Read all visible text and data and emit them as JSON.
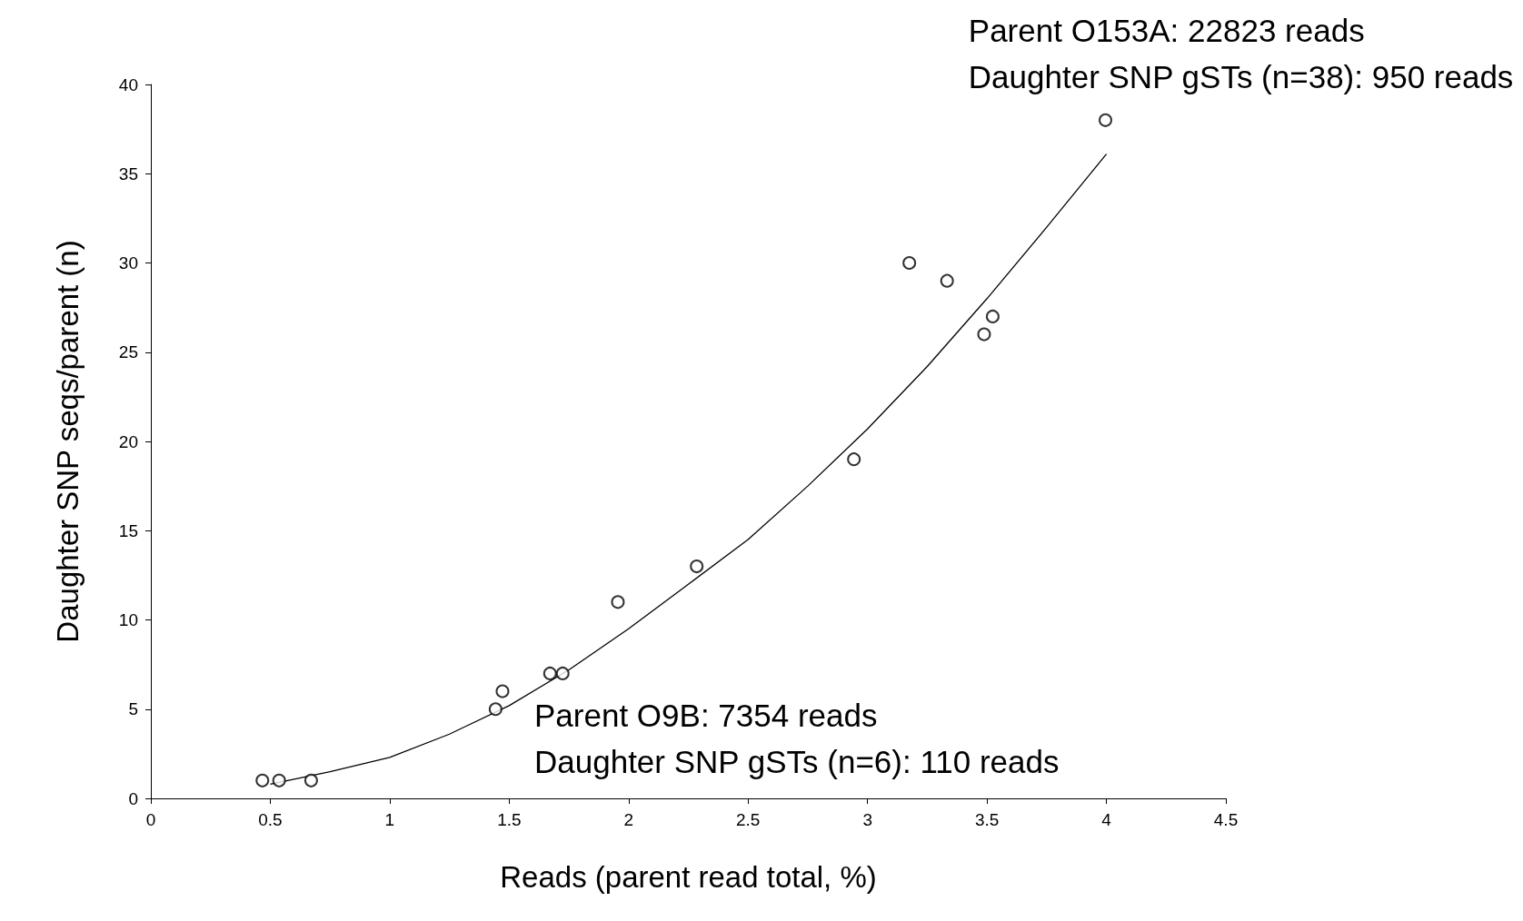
{
  "chart_data": {
    "type": "scatter",
    "xlabel": "Reads (parent read total, %)",
    "ylabel": "Daughter SNP seqs/parent (n)",
    "xlim": [
      0,
      4.5
    ],
    "xticks": [
      0,
      0.5,
      1,
      1.5,
      2,
      2.5,
      3,
      3.5,
      4,
      4.5
    ],
    "ylim": [
      0,
      40
    ],
    "yticks": [
      0,
      5,
      10,
      15,
      20,
      25,
      30,
      35,
      40
    ],
    "grid": false,
    "marker": "circle",
    "series": [
      {
        "color": "#000000",
        "x": [
          0.467,
          0.537,
          0.671,
          1.443,
          1.472,
          1.671,
          1.724,
          1.955,
          2.285,
          2.943,
          3.175,
          3.333,
          3.488,
          3.524,
          3.996
        ],
        "values": [
          1,
          1,
          1,
          5,
          6,
          7,
          7,
          11,
          13,
          19,
          30,
          29,
          26,
          27,
          38
        ]
      },
      {
        "type": "line",
        "color": "#000000",
        "marker": "none",
        "line_style": "solid",
        "x": [
          0.5,
          0.75,
          1,
          1.25,
          1.5,
          1.75,
          2,
          2.25,
          2.5,
          2.75,
          3,
          3.25,
          3.5,
          3.75,
          4
        ],
        "values": [
          0.8,
          1.5,
          2.3,
          3.6,
          5.2,
          7.2,
          9.5,
          12,
          14.5,
          17.5,
          20.7,
          24.2,
          28,
          32,
          36.1
        ]
      }
    ],
    "annotations": [
      "Parent O153A: 22823 reads\nDaughter SNP gSTs (n=38): 950 reads",
      "Parent O9B: 7354 reads\nDaughter SNP gSTs (n=6): 110 reads"
    ]
  }
}
